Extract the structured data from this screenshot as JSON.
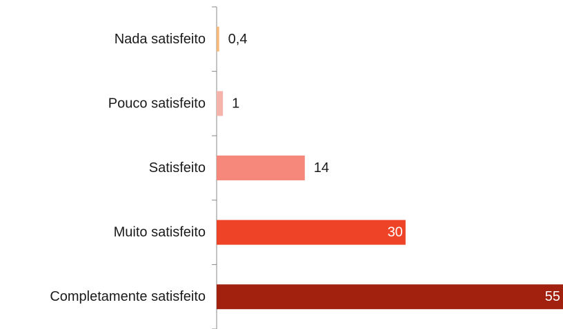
{
  "chart_data": {
    "type": "bar",
    "orientation": "horizontal",
    "categories": [
      "Nada satisfeito",
      "Pouco satisfeito",
      "Satisfeito",
      "Muito satisfeito",
      "Completamente satisfeito"
    ],
    "values": [
      0.4,
      1,
      14,
      30,
      55
    ],
    "value_labels": [
      "0,4",
      "1",
      "14",
      "30",
      "55"
    ],
    "colors": [
      "#F7B97A",
      "#F6B3AC",
      "#F5887A",
      "#EE4327",
      "#A2210E"
    ],
    "label_colors": [
      "#1a1a1a",
      "#1a1a1a",
      "#1a1a1a",
      "#ffffff",
      "#ffffff"
    ],
    "label_positions": [
      "outside",
      "outside",
      "outside",
      "inside",
      "inside"
    ],
    "title": "",
    "xlabel": "",
    "ylabel": "",
    "xlim": [
      0,
      55
    ],
    "grid": false,
    "legend": false,
    "axis_color": "#888888"
  }
}
